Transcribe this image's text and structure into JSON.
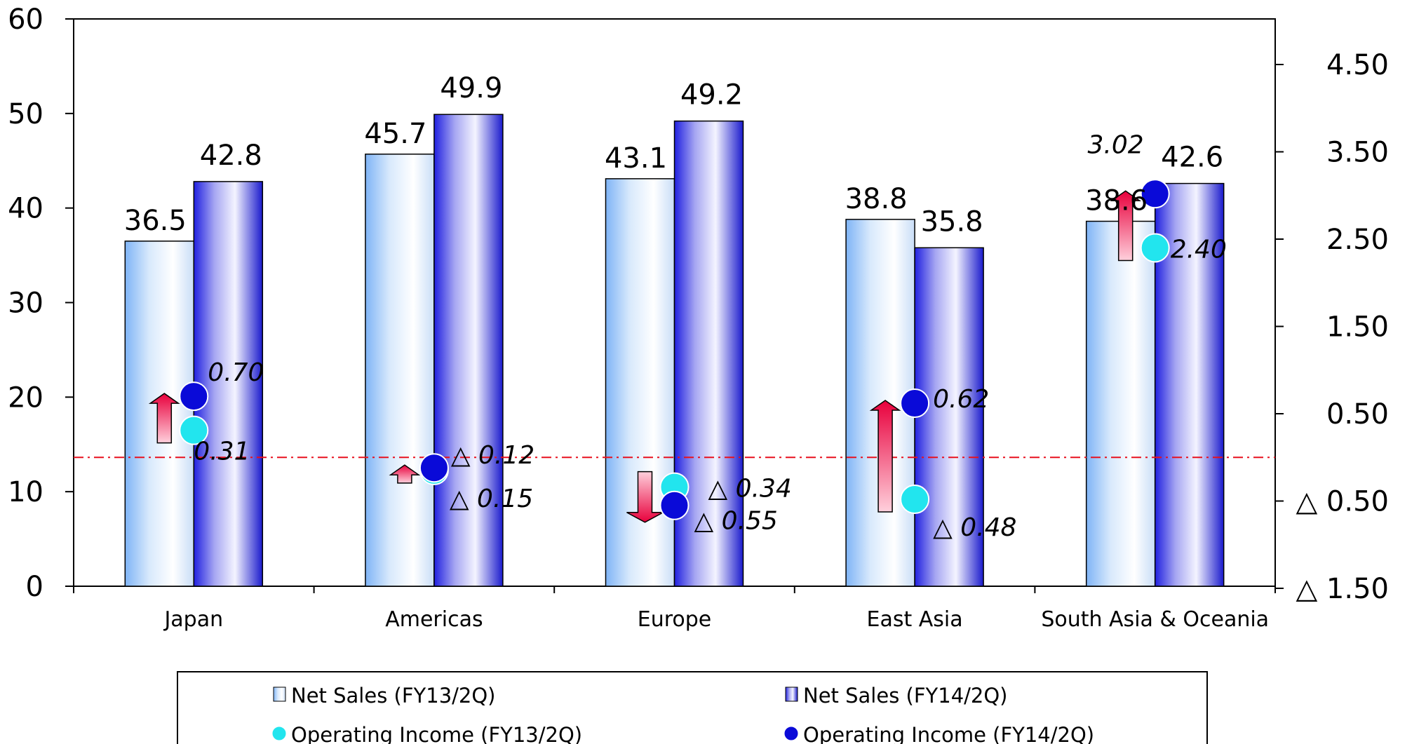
{
  "chart_data": {
    "type": "bar",
    "categories": [
      "Japan",
      "Americas",
      "Europe",
      "East Asia",
      "South Asia & Oceania"
    ],
    "series": [
      {
        "name": "Net Sales (FY13/2Q)",
        "axis": "left",
        "kind": "bar",
        "style": "light",
        "values": [
          36.5,
          45.7,
          43.1,
          38.8,
          38.6
        ],
        "labels": [
          "36.5",
          "45.7",
          "43.1",
          "38.8",
          "38.6"
        ]
      },
      {
        "name": "Net Sales (FY14/2Q)",
        "axis": "left",
        "kind": "bar",
        "style": "dark",
        "values": [
          42.8,
          49.9,
          49.2,
          35.8,
          42.6
        ],
        "labels": [
          "42.8",
          "49.9",
          "49.2",
          "35.8",
          "42.6"
        ]
      },
      {
        "name": "Operating Income (FY13/2Q)",
        "axis": "right",
        "kind": "point",
        "color": "#22e5ee",
        "values": [
          0.31,
          -0.15,
          -0.34,
          -0.48,
          2.4
        ],
        "labels": [
          "0.31",
          "△ 0.15",
          "△ 0.34",
          "△ 0.48",
          "2.40"
        ]
      },
      {
        "name": "Operating Income (FY14/2Q)",
        "axis": "right",
        "kind": "point",
        "color": "#0a0ad8",
        "values": [
          0.7,
          -0.12,
          -0.55,
          0.62,
          3.02
        ],
        "labels": [
          "0.70",
          "△ 0.12",
          "△ 0.55",
          "0.62",
          "3.02"
        ]
      }
    ],
    "y_left": {
      "min": 0,
      "max": 60,
      "ticks": [
        0,
        10,
        20,
        30,
        40,
        50,
        60
      ],
      "tick_labels": [
        "0",
        "10",
        "20",
        "30",
        "40",
        "50",
        "60"
      ]
    },
    "y_right": {
      "min": -1.5,
      "max": 4.5,
      "ticks": [
        -1.5,
        -0.5,
        0.5,
        1.5,
        2.5,
        3.5,
        4.5
      ],
      "tick_labels": [
        "△ 1.50",
        "△ 0.50",
        "0.50",
        "1.50",
        "2.50",
        "3.50",
        "4.50"
      ]
    },
    "zero_line_right": 0,
    "legend_position": "bottom",
    "arrow_gradient": [
      "#ffd0dc",
      "#e8003c"
    ]
  }
}
